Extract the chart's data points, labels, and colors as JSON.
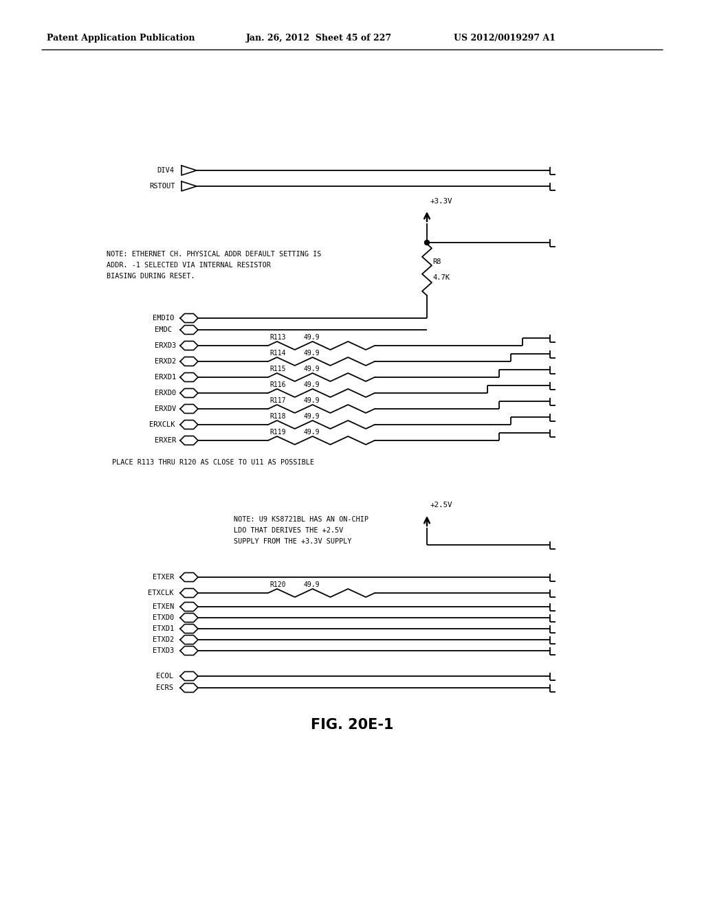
{
  "header_left": "Patent Application Publication",
  "header_mid": "Jan. 26, 2012  Sheet 45 of 227",
  "header_right": "US 2012/0019297 A1",
  "figure_label": "FIG. 20E-1",
  "bg_color": "#ffffff",
  "lc": "#000000",
  "note1_lines": [
    "NOTE: ETHERNET CH. PHYSICAL ADDR DEFAULT SETTING IS",
    "ADDR. -1 SELECTED VIA INTERNAL RESISTOR",
    "BIASING DURING RESET."
  ],
  "note2_lines": [
    "NOTE: U9 KS8721BL HAS AN ON-CHIP",
    "LDO THAT DERIVES THE +2.5V",
    "SUPPLY FROM THE +3.3V SUPPLY"
  ],
  "note3": "PLACE R113 THRU R120 AS CLOSE TO U11 AS POSSIBLE",
  "vcc33": "+3.3V",
  "vcc25": "+2.5V",
  "r8_label": "R8",
  "r8_val": "4.7K"
}
